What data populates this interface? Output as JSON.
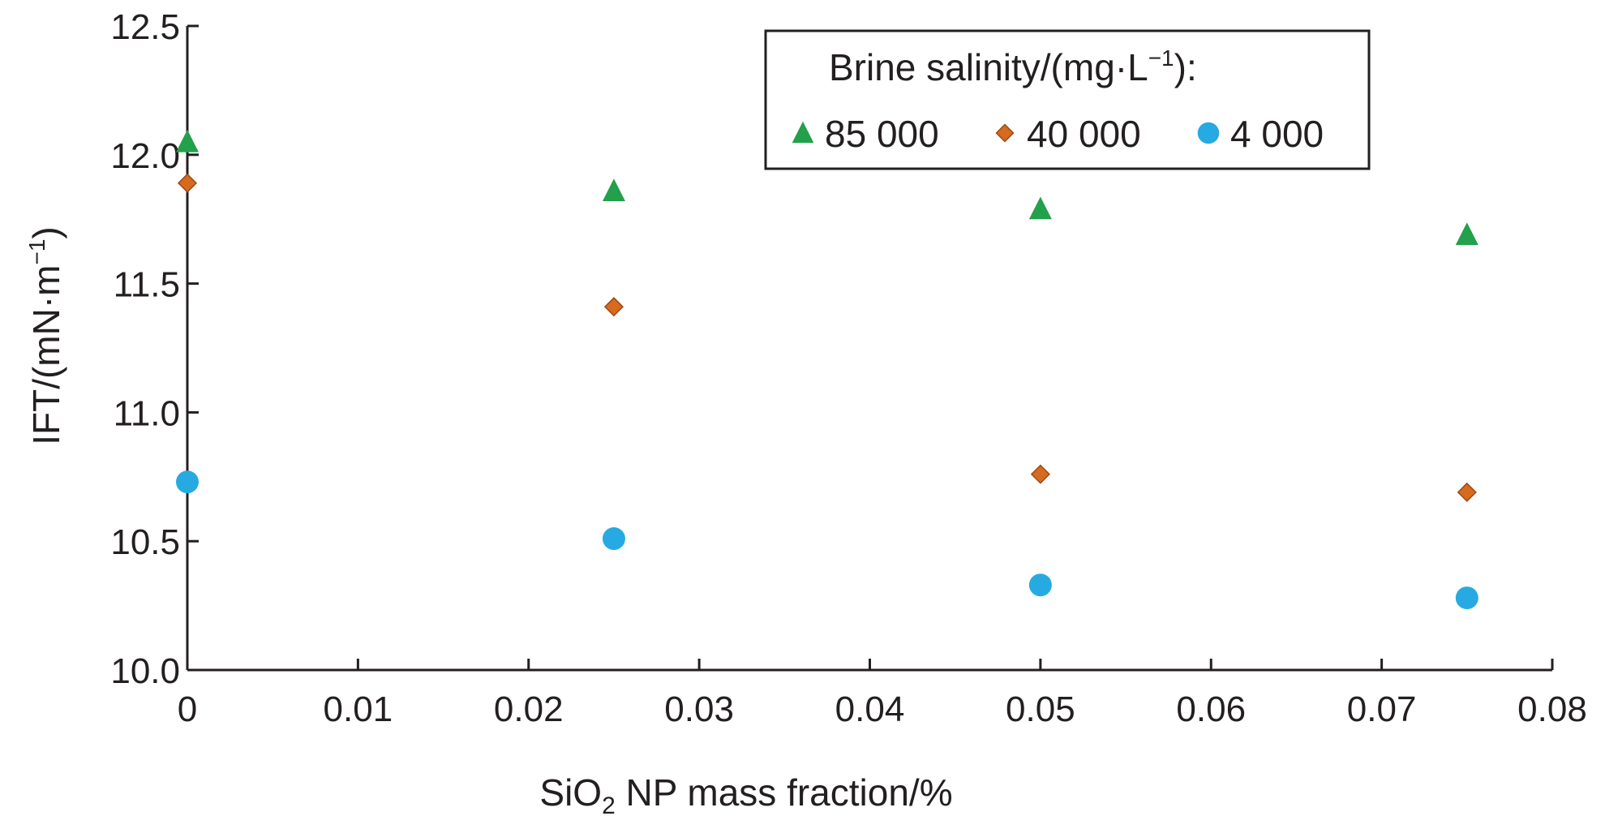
{
  "chart_data": {
    "type": "scatter",
    "xlabel": {
      "before_sub": "SiO",
      "sub": "2",
      "after_sub": " NP mass fraction/%"
    },
    "ylabel": {
      "before_sup": "IFT/(mN·m",
      "sup": "−1",
      "after_sup": ")"
    },
    "xlim": [
      0,
      0.08
    ],
    "ylim": [
      10.0,
      12.5
    ],
    "x_ticks": [
      0,
      0.01,
      0.02,
      0.03,
      0.04,
      0.05,
      0.06,
      0.07,
      0.08
    ],
    "x_tick_labels": [
      "0",
      "0.01",
      "0.02",
      "0.03",
      "0.04",
      "0.05",
      "0.06",
      "0.07",
      "0.08"
    ],
    "y_ticks": [
      10.0,
      10.5,
      11.0,
      11.5,
      12.0,
      12.5
    ],
    "y_tick_labels": [
      "10.0",
      "10.5",
      "11.0",
      "11.5",
      "12.0",
      "12.5"
    ],
    "legend": {
      "title": {
        "before_sup": "Brine salinity/(mg·L",
        "sup": "−1",
        "after_sup": "):"
      },
      "placement": "top-right"
    },
    "series": [
      {
        "name": "85 000",
        "marker": "triangle",
        "color": "#22a04b",
        "x": [
          0,
          0.025,
          0.05,
          0.075
        ],
        "y": [
          12.05,
          11.86,
          11.79,
          11.69
        ]
      },
      {
        "name": "40 000",
        "marker": "diamond",
        "color": "#d66a1f",
        "x": [
          0,
          0.025,
          0.05,
          0.075
        ],
        "y": [
          11.89,
          11.41,
          10.76,
          10.69
        ]
      },
      {
        "name": "4 000",
        "marker": "circle",
        "color": "#27aae1",
        "x": [
          0,
          0.025,
          0.05,
          0.075
        ],
        "y": [
          10.73,
          10.51,
          10.33,
          10.28
        ]
      }
    ],
    "grid": false
  }
}
